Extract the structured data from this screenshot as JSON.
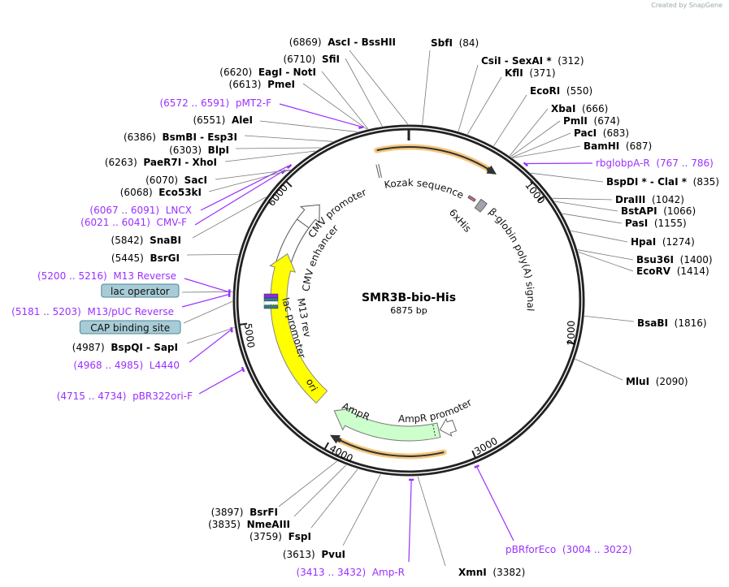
{
  "credit": "Created by SnapGene",
  "plasmid": {
    "name": "SMR3B-bio-His",
    "length_text": "6875 bp",
    "length_bp": 6875
  },
  "colors": {
    "enzyme": "#000000",
    "primer": "#9b30ff",
    "ring": "#222222",
    "ori": "#ffff00",
    "ampr": "#ccffcc",
    "orf": "#f5c77e",
    "boxfeature": "#a8ccd7"
  },
  "ticks": [
    "1000",
    "2000",
    "3000",
    "4000",
    "5000",
    "6000"
  ],
  "features": {
    "kozak": "Kozak sequence",
    "cmv_promoter": "CMV promoter",
    "cmv_enhancer": "CMV enhancer",
    "his": "6xHis",
    "globin": "β-globin poly(A) signal",
    "m13rev": "M13 rev",
    "lac_promoter": "lac promoter",
    "ori": "ori",
    "ampr": "AmpR",
    "ampr_promoter": "AmpR promoter"
  },
  "sites": [
    {
      "name": "SbfI",
      "loc": "(84)",
      "bp": 84,
      "kind": "enzyme"
    },
    {
      "name": "CsiI  - SexAI *",
      "loc": "(312)",
      "bp": 312,
      "kind": "enzyme"
    },
    {
      "name": "KflI",
      "loc": "(371)",
      "bp": 371,
      "kind": "enzyme"
    },
    {
      "name": "EcoRI",
      "loc": "(550)",
      "bp": 550,
      "kind": "enzyme"
    },
    {
      "name": "XbaI",
      "loc": "(666)",
      "bp": 666,
      "kind": "enzyme"
    },
    {
      "name": "PmlI",
      "loc": "(674)",
      "bp": 674,
      "kind": "enzyme"
    },
    {
      "name": "PacI",
      "loc": "(683)",
      "bp": 683,
      "kind": "enzyme"
    },
    {
      "name": "BamHI",
      "loc": "(687)",
      "bp": 687,
      "kind": "enzyme"
    },
    {
      "name": "rbglobpA-R",
      "loc": "(767 .. 786)",
      "bp": 776,
      "kind": "primer"
    },
    {
      "name": "BspDI *  - ClaI *",
      "loc": "(835)",
      "bp": 835,
      "kind": "enzyme"
    },
    {
      "name": "DraIII",
      "loc": "(1042)",
      "bp": 1042,
      "kind": "enzyme"
    },
    {
      "name": "BstAPI",
      "loc": "(1066)",
      "bp": 1066,
      "kind": "enzyme"
    },
    {
      "name": "PasI",
      "loc": "(1155)",
      "bp": 1155,
      "kind": "enzyme"
    },
    {
      "name": "HpaI",
      "loc": "(1274)",
      "bp": 1274,
      "kind": "enzyme"
    },
    {
      "name": "Bsu36I",
      "loc": "(1400)",
      "bp": 1400,
      "kind": "enzyme"
    },
    {
      "name": "EcoRV",
      "loc": "(1414)",
      "bp": 1414,
      "kind": "enzyme"
    },
    {
      "name": "BsaBI",
      "loc": "(1816)",
      "bp": 1816,
      "kind": "enzyme"
    },
    {
      "name": "MluI",
      "loc": "(2090)",
      "bp": 2090,
      "kind": "enzyme"
    },
    {
      "name": "pBRforEco",
      "loc": "(3004 .. 3022)",
      "bp": 3013,
      "kind": "primer"
    },
    {
      "name": "XmnI",
      "loc": "(3382)",
      "bp": 3382,
      "kind": "enzyme"
    },
    {
      "name": "Amp-R",
      "loc": "(3413 .. 3432)",
      "bp": 3422,
      "kind": "primer"
    },
    {
      "name": "PvuI",
      "loc": "(3613)",
      "bp": 3613,
      "kind": "enzyme"
    },
    {
      "name": "FspI",
      "loc": "(3759)",
      "bp": 3759,
      "kind": "enzyme"
    },
    {
      "name": "NmeAIII",
      "loc": "(3835)",
      "bp": 3835,
      "kind": "enzyme"
    },
    {
      "name": "BsrFI",
      "loc": "(3897)",
      "bp": 3897,
      "kind": "enzyme"
    },
    {
      "name": "pBR322ori-F",
      "loc": "(4715 .. 4734)",
      "bp": 4724,
      "kind": "primer"
    },
    {
      "name": "L4440",
      "loc": "(4968 .. 4985)",
      "bp": 4976,
      "kind": "primer"
    },
    {
      "name": "BspQI  - SapI",
      "loc": "(4987)",
      "bp": 4987,
      "kind": "enzyme"
    },
    {
      "name": "CAP binding site",
      "loc": "",
      "bp": 5150,
      "kind": "box"
    },
    {
      "name": "M13/pUC Reverse",
      "loc": "(5181 .. 5203)",
      "bp": 5192,
      "kind": "primer"
    },
    {
      "name": "lac operator",
      "loc": "",
      "bp": 5210,
      "kind": "box"
    },
    {
      "name": "M13 Reverse",
      "loc": "(5200 .. 5216)",
      "bp": 5208,
      "kind": "primer"
    },
    {
      "name": "BsrGI",
      "loc": "(5445)",
      "bp": 5445,
      "kind": "enzyme"
    },
    {
      "name": "SnaBI",
      "loc": "(5842)",
      "bp": 5842,
      "kind": "enzyme"
    },
    {
      "name": "CMV-F",
      "loc": "(6021 .. 6041)",
      "bp": 6031,
      "kind": "primer"
    },
    {
      "name": "LNCX",
      "loc": "(6067 .. 6091)",
      "bp": 6079,
      "kind": "primer"
    },
    {
      "name": "Eco53kI",
      "loc": "(6068)",
      "bp": 6068,
      "kind": "enzyme"
    },
    {
      "name": "SacI",
      "loc": "(6070)",
      "bp": 6070,
      "kind": "enzyme"
    },
    {
      "name": "PaeR7I  - XhoI",
      "loc": "(6263)",
      "bp": 6263,
      "kind": "enzyme"
    },
    {
      "name": "BlpI",
      "loc": "(6303)",
      "bp": 6303,
      "kind": "enzyme"
    },
    {
      "name": "BsmBI  - Esp3I",
      "loc": "(6386)",
      "bp": 6386,
      "kind": "enzyme"
    },
    {
      "name": "AleI",
      "loc": "(6551)",
      "bp": 6551,
      "kind": "enzyme"
    },
    {
      "name": "pMT2-F",
      "loc": "(6572 .. 6591)",
      "bp": 6581,
      "kind": "primer"
    },
    {
      "name": "PmeI",
      "loc": "(6613)",
      "bp": 6613,
      "kind": "enzyme"
    },
    {
      "name": "EagI  - NotI",
      "loc": "(6620)",
      "bp": 6620,
      "kind": "enzyme"
    },
    {
      "name": "SfiI",
      "loc": "(6710)",
      "bp": 6710,
      "kind": "enzyme"
    },
    {
      "name": "AscI  - BssHII",
      "loc": "(6869)",
      "bp": 6869,
      "kind": "enzyme"
    }
  ]
}
